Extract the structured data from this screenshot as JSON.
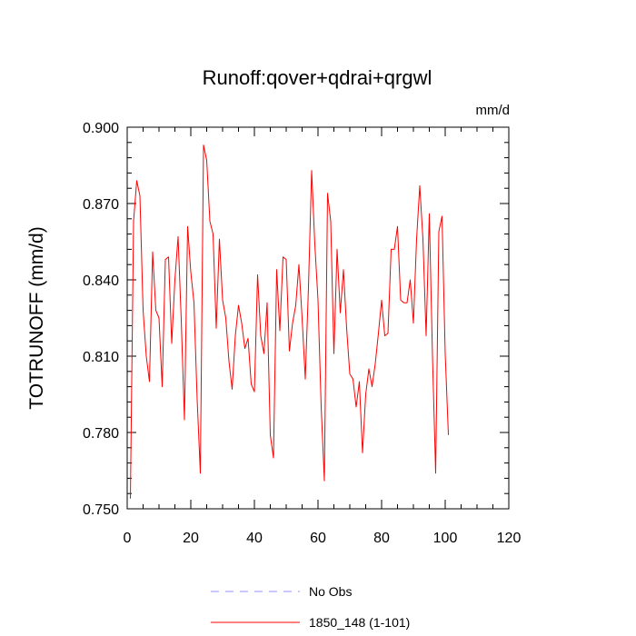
{
  "chart_data": {
    "type": "line",
    "title": "Runoff:qover+qdrai+qrgwl",
    "units": "mm/d",
    "xlabel": "",
    "ylabel": "TOTRUNOFF  (mm/d)",
    "xlim": [
      0,
      120
    ],
    "ylim": [
      0.75,
      0.9
    ],
    "x_ticks": [
      "0",
      "20",
      "40",
      "60",
      "80",
      "100",
      "120"
    ],
    "y_ticks": [
      "0.750",
      "0.780",
      "0.810",
      "0.840",
      "0.870",
      "0.900"
    ],
    "grid": false,
    "legend_position": "bottom",
    "series": [
      {
        "name": "No Obs",
        "color": "#9090ff",
        "dash": "dashed",
        "x": [],
        "values": []
      },
      {
        "name": "1850_148 (1-101)",
        "color": "#ff0000",
        "dash": "solid",
        "x": [
          1,
          2,
          3,
          4,
          5,
          6,
          7,
          8,
          9,
          10,
          11,
          12,
          13,
          14,
          15,
          16,
          17,
          18,
          19,
          20,
          21,
          22,
          23,
          24,
          25,
          26,
          27,
          28,
          29,
          30,
          31,
          32,
          33,
          34,
          35,
          36,
          37,
          38,
          39,
          40,
          41,
          42,
          43,
          44,
          45,
          46,
          47,
          48,
          49,
          50,
          51,
          52,
          53,
          54,
          55,
          56,
          57,
          58,
          59,
          60,
          61,
          62,
          63,
          64,
          65,
          66,
          67,
          68,
          69,
          70,
          71,
          72,
          73,
          74,
          75,
          76,
          77,
          78,
          79,
          80,
          81,
          82,
          83,
          84,
          85,
          86,
          87,
          88,
          89,
          90,
          91,
          92,
          93,
          94,
          95,
          96,
          97,
          98,
          99,
          100,
          101
        ],
        "values": [
          0.754,
          0.863,
          0.879,
          0.873,
          0.828,
          0.81,
          0.8,
          0.851,
          0.828,
          0.825,
          0.798,
          0.848,
          0.849,
          0.815,
          0.84,
          0.857,
          0.824,
          0.785,
          0.861,
          0.843,
          0.831,
          0.793,
          0.764,
          0.893,
          0.887,
          0.863,
          0.858,
          0.821,
          0.856,
          0.832,
          0.825,
          0.808,
          0.797,
          0.818,
          0.83,
          0.823,
          0.813,
          0.817,
          0.799,
          0.796,
          0.842,
          0.818,
          0.811,
          0.831,
          0.779,
          0.77,
          0.844,
          0.82,
          0.849,
          0.848,
          0.812,
          0.823,
          0.83,
          0.846,
          0.825,
          0.801,
          0.837,
          0.883,
          0.854,
          0.832,
          0.79,
          0.761,
          0.874,
          0.863,
          0.811,
          0.852,
          0.827,
          0.844,
          0.821,
          0.803,
          0.801,
          0.79,
          0.8,
          0.772,
          0.795,
          0.805,
          0.798,
          0.807,
          0.819,
          0.832,
          0.818,
          0.819,
          0.852,
          0.852,
          0.861,
          0.832,
          0.831,
          0.831,
          0.84,
          0.823,
          0.856,
          0.877,
          0.856,
          0.818,
          0.866,
          0.81,
          0.764,
          0.859,
          0.865,
          0.811,
          0.779
        ]
      }
    ]
  }
}
